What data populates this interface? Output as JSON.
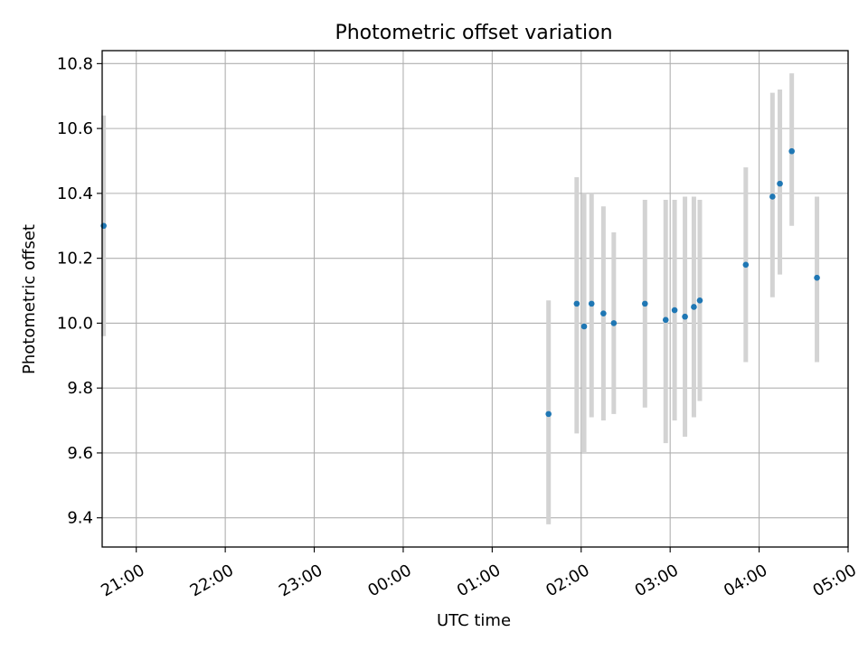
{
  "chart_data": {
    "type": "scatter",
    "title": "Photometric offset variation",
    "xlabel": "UTC time",
    "ylabel": "Photometric offset",
    "x_unit": "UTC time (HH:MM), night spanning midnight",
    "xlim": [
      "20:37",
      "05:00"
    ],
    "ylim": [
      9.31,
      10.84
    ],
    "x_ticks": [
      "21:00",
      "22:00",
      "23:00",
      "00:00",
      "01:00",
      "02:00",
      "03:00",
      "04:00",
      "05:00"
    ],
    "y_ticks": [
      9.4,
      9.6,
      9.8,
      10.0,
      10.2,
      10.4,
      10.6,
      10.8
    ],
    "grid": true,
    "marker_color": "#1f77b4",
    "errorbar_color": "#d3d3d3",
    "series": [
      {
        "points": [
          {
            "x": "20:38",
            "y": 10.3,
            "ylow": 9.96,
            "yhigh": 10.64
          },
          {
            "x": "01:38",
            "y": 9.72,
            "ylow": 9.38,
            "yhigh": 10.07
          },
          {
            "x": "01:57",
            "y": 10.06,
            "ylow": 9.66,
            "yhigh": 10.45
          },
          {
            "x": "02:02",
            "y": 9.99,
            "ylow": 9.6,
            "yhigh": 10.4
          },
          {
            "x": "02:07",
            "y": 10.06,
            "ylow": 9.71,
            "yhigh": 10.4
          },
          {
            "x": "02:15",
            "y": 10.03,
            "ylow": 9.7,
            "yhigh": 10.36
          },
          {
            "x": "02:22",
            "y": 10.0,
            "ylow": 9.72,
            "yhigh": 10.28
          },
          {
            "x": "02:43",
            "y": 10.06,
            "ylow": 9.74,
            "yhigh": 10.38
          },
          {
            "x": "02:57",
            "y": 10.01,
            "ylow": 9.63,
            "yhigh": 10.38
          },
          {
            "x": "03:03",
            "y": 10.04,
            "ylow": 9.7,
            "yhigh": 10.38
          },
          {
            "x": "03:10",
            "y": 10.02,
            "ylow": 9.65,
            "yhigh": 10.39
          },
          {
            "x": "03:16",
            "y": 10.05,
            "ylow": 9.71,
            "yhigh": 10.39
          },
          {
            "x": "03:20",
            "y": 10.07,
            "ylow": 9.76,
            "yhigh": 10.38
          },
          {
            "x": "03:51",
            "y": 10.18,
            "ylow": 9.88,
            "yhigh": 10.48
          },
          {
            "x": "04:09",
            "y": 10.39,
            "ylow": 10.08,
            "yhigh": 10.71
          },
          {
            "x": "04:14",
            "y": 10.43,
            "ylow": 10.15,
            "yhigh": 10.72
          },
          {
            "x": "04:22",
            "y": 10.53,
            "ylow": 10.3,
            "yhigh": 10.77
          },
          {
            "x": "04:39",
            "y": 10.14,
            "ylow": 9.88,
            "yhigh": 10.39
          }
        ]
      }
    ]
  }
}
